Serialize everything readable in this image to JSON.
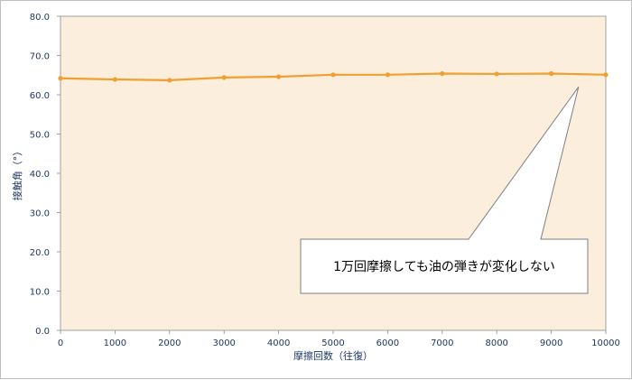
{
  "chart_data": {
    "type": "line",
    "title": "",
    "xlabel": "摩擦回数（往復）",
    "ylabel": "接触角（°）",
    "x": [
      0,
      1000,
      2000,
      3000,
      4000,
      5000,
      6000,
      7000,
      8000,
      9000,
      10000
    ],
    "series": [
      {
        "values": [
          64.2,
          63.9,
          63.7,
          64.4,
          64.6,
          65.1,
          65.1,
          65.4,
          65.3,
          65.4,
          65.1
        ]
      }
    ],
    "xlim": [
      0,
      10000
    ],
    "ylim": [
      0,
      80
    ],
    "x_ticks": [
      "0",
      "1000",
      "2000",
      "3000",
      "4000",
      "5000",
      "6000",
      "7000",
      "8000",
      "9000",
      "10000"
    ],
    "y_ticks": [
      "0.0",
      "10.0",
      "20.0",
      "30.0",
      "40.0",
      "50.0",
      "60.0",
      "70.0",
      "80.0"
    ],
    "grid": false,
    "annotation": {
      "text": "1万回摩擦しても油の弾きが変化しない",
      "points_to": {
        "x": 9500,
        "y": 62
      }
    },
    "colors": {
      "line": "#f0a030",
      "plot_background": "#fbeedd",
      "axis_text": "#1f3864"
    }
  }
}
